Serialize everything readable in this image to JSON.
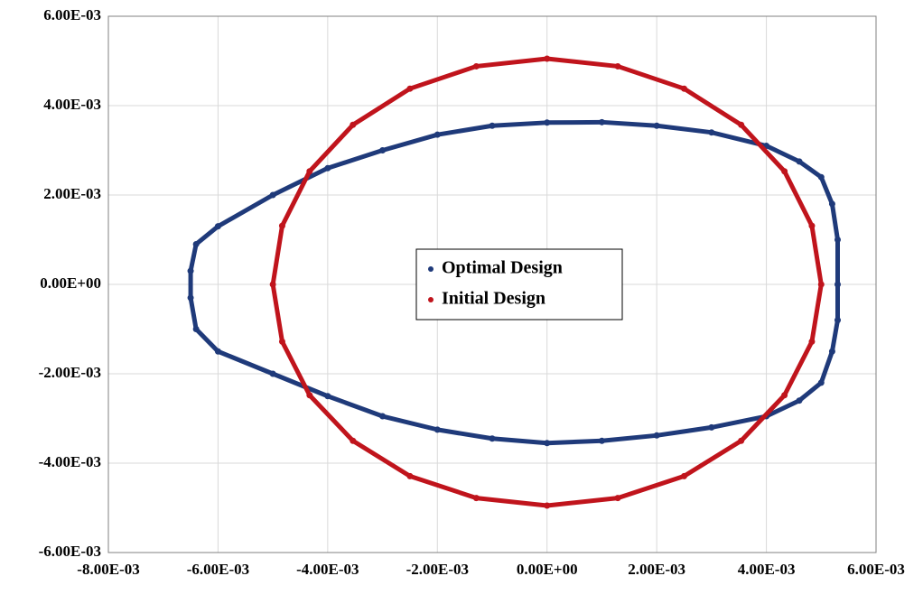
{
  "chart_data": {
    "type": "scatter",
    "xlim": [
      -0.008,
      0.006
    ],
    "xticks": [
      {
        "value": -0.008,
        "label": "-8.00E-03"
      },
      {
        "value": -0.006,
        "label": "-6.00E-03"
      },
      {
        "value": -0.004,
        "label": "-4.00E-03"
      },
      {
        "value": -0.002,
        "label": "-2.00E-03"
      },
      {
        "value": 0,
        "label": "0.00E+00"
      },
      {
        "value": 0.002,
        "label": "2.00E-03"
      },
      {
        "value": 0.004,
        "label": "4.00E-03"
      },
      {
        "value": 0.006,
        "label": "6.00E-03"
      }
    ],
    "ylim": [
      -0.006,
      0.006
    ],
    "yticks": [
      {
        "value": -0.006,
        "label": "-6.00E-03"
      },
      {
        "value": -0.004,
        "label": "-4.00E-03"
      },
      {
        "value": -0.002,
        "label": "-2.00E-03"
      },
      {
        "value": 0,
        "label": "0.00E+00"
      },
      {
        "value": 0.002,
        "label": "2.00E-03"
      },
      {
        "value": 0.004,
        "label": "4.00E-03"
      },
      {
        "value": 0.006,
        "label": "6.00E-03"
      }
    ],
    "grid": true,
    "legend": "center",
    "series": [
      {
        "name": "Optimal Design",
        "color": "#1f3a7a",
        "x": [
          0.0053,
          0.0053,
          0.0052,
          0.005,
          0.0046,
          0.004,
          0.003,
          0.002,
          0.001,
          0,
          -0.001,
          -0.002,
          -0.003,
          -0.004,
          -0.005,
          -0.006,
          -0.0064,
          -0.0065,
          -0.0065,
          -0.0064,
          -0.006,
          -0.005,
          -0.004,
          -0.003,
          -0.002,
          -0.001,
          0,
          0.001,
          0.002,
          0.003,
          0.004,
          0.0046,
          0.005,
          0.0052,
          0.0053
        ],
        "y": [
          0,
          0.001,
          0.0018,
          0.0024,
          0.00275,
          0.0031,
          0.0034,
          0.00355,
          0.00363,
          0.00362,
          0.00355,
          0.00335,
          0.003,
          0.0026,
          0.002,
          0.0013,
          0.0009,
          0.0003,
          -0.0003,
          -0.001,
          -0.0015,
          -0.002,
          -0.0025,
          -0.00295,
          -0.00325,
          -0.00345,
          -0.00355,
          -0.0035,
          -0.00338,
          -0.0032,
          -0.00295,
          -0.0026,
          -0.0022,
          -0.0015,
          -0.0008
        ]
      },
      {
        "name": "Initial Design",
        "color": "#c0141c",
        "x": [
          0.005,
          0.00483,
          0.00433,
          0.00354,
          0.0025,
          0.00129,
          0,
          -0.00129,
          -0.0025,
          -0.00354,
          -0.00433,
          -0.00483,
          -0.005,
          -0.00483,
          -0.00433,
          -0.00354,
          -0.0025,
          -0.00129,
          0,
          0.00129,
          0.0025,
          0.00354,
          0.00433,
          0.00483
        ],
        "y": [
          0,
          0.00131,
          0.00253,
          0.00357,
          0.00438,
          0.00488,
          0.00505,
          0.00488,
          0.00438,
          0.00357,
          0.00253,
          0.00131,
          0,
          -0.00128,
          -0.00248,
          -0.0035,
          -0.00429,
          -0.00478,
          -0.00495,
          -0.00478,
          -0.00429,
          -0.0035,
          -0.00248,
          -0.00128
        ]
      }
    ]
  }
}
